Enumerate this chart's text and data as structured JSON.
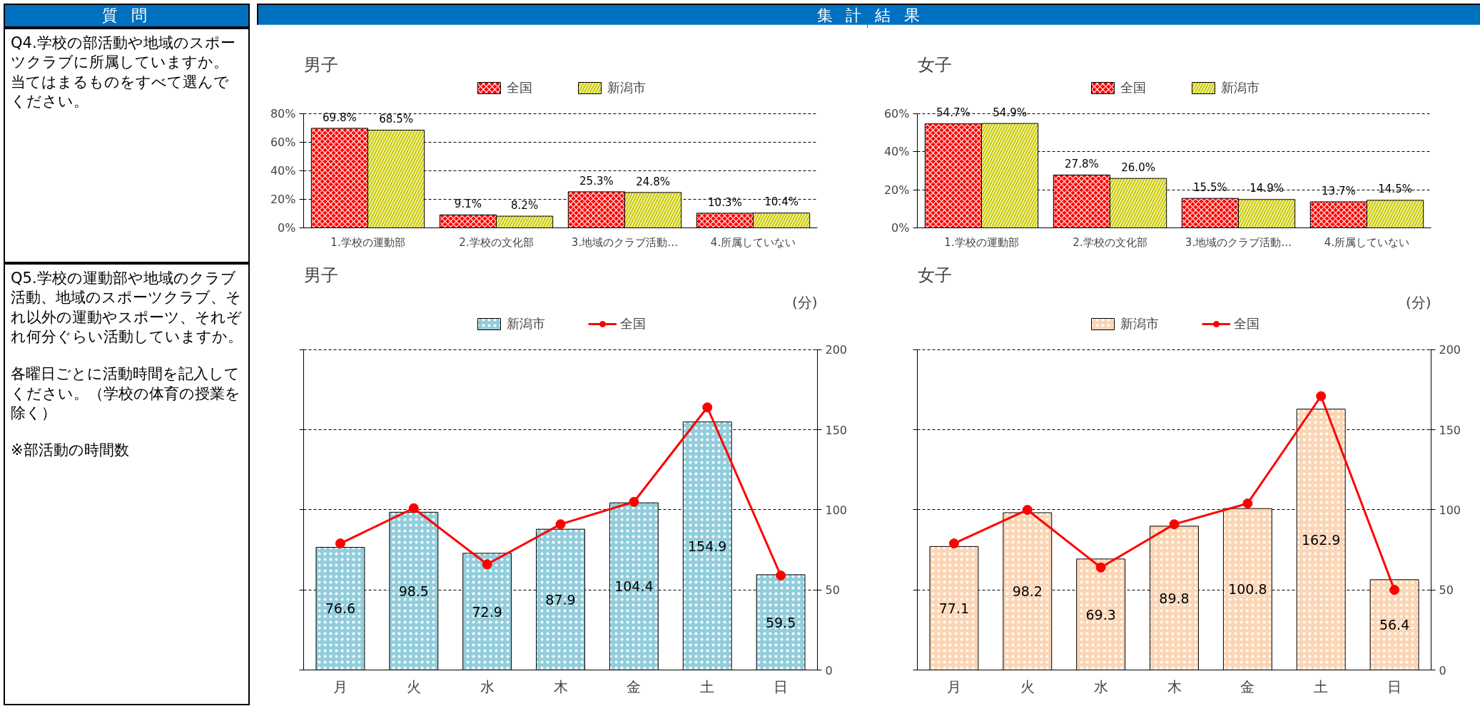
{
  "chart_data": [
    {
      "type": "other",
      "annotations": [
        "質 問",
        "集 計 結 果"
      ]
    },
    {
      "type": "other",
      "annotations": [
        "Q4.学校の部活動や地域のスポーツクラブに所属していますか。当てはまるものをすべて選んでください。"
      ]
    },
    {
      "type": "bar",
      "title": "男子",
      "categories": [
        "1.学校の運動部",
        "2.学校の文化部",
        "3.地域のクラブ活動…",
        "4.所属していない"
      ],
      "series": [
        {
          "name": "全国",
          "color": "#ff0000",
          "values": [
            69.8,
            9.1,
            25.3,
            10.3
          ],
          "value_labels": [
            "69.8%",
            "9.1%",
            "25.3%",
            "10.3%"
          ]
        },
        {
          "name": "新潟市",
          "color": "#cccc00",
          "values": [
            68.5,
            8.2,
            24.8,
            10.4
          ],
          "value_labels": [
            "68.5%",
            "8.2%",
            "24.8%",
            "10.4%"
          ]
        }
      ],
      "ylim": [
        0,
        80
      ],
      "yticks": [
        {
          "value": 0,
          "label": "0%"
        },
        {
          "value": 20,
          "label": "20%"
        },
        {
          "value": 40,
          "label": "40%"
        },
        {
          "value": 60,
          "label": "60%"
        },
        {
          "value": 80,
          "label": "80%"
        }
      ],
      "grid": "y",
      "legend": "top"
    },
    {
      "type": "bar",
      "title": "女子",
      "categories": [
        "1.学校の運動部",
        "2.学校の文化部",
        "3.地域のクラブ活動…",
        "4.所属していない"
      ],
      "series": [
        {
          "name": "全国",
          "color": "#ff0000",
          "values": [
            54.7,
            27.8,
            15.5,
            13.7
          ],
          "value_labels": [
            "54.7%",
            "27.8%",
            "15.5%",
            "13.7%"
          ]
        },
        {
          "name": "新潟市",
          "color": "#cccc00",
          "values": [
            54.9,
            26.0,
            14.9,
            14.5
          ],
          "value_labels": [
            "54.9%",
            "26.0%",
            "14.9%",
            "14.5%"
          ]
        }
      ],
      "ylim": [
        0,
        60
      ],
      "yticks": [
        {
          "value": 0,
          "label": "0%"
        },
        {
          "value": 20,
          "label": "20%"
        },
        {
          "value": 40,
          "label": "40%"
        },
        {
          "value": 60,
          "label": "60%"
        }
      ],
      "grid": "y",
      "legend": "top"
    },
    {
      "type": "other",
      "annotations": [
        "Q5.学校の運動部や地域のクラブ活動、地域のスポーツクラブ、それ以外の運動やスポーツ、それぞれ何分ぐらい活動していますか。",
        "各曜日ごとに活動時間を記入してください。（学校の体育の授業を除く）",
        "※部活動の時間数"
      ]
    },
    {
      "type": "bar",
      "title": "男子",
      "y2label": "(分)",
      "categories": [
        "月",
        "火",
        "水",
        "木",
        "金",
        "土",
        "日"
      ],
      "series": [
        {
          "name": "新潟市",
          "type": "bar",
          "axis": "y2",
          "color": "#92cddc",
          "values": [
            76.6,
            98.5,
            72.9,
            87.9,
            104.4,
            154.9,
            59.5
          ],
          "value_labels": [
            "76.6",
            "98.5",
            "72.9",
            "87.9",
            "104.4",
            "154.9",
            "59.5"
          ]
        },
        {
          "name": "全国",
          "type": "line",
          "axis": "y2",
          "color": "#ff0000",
          "marker": "circle",
          "values": [
            79,
            101,
            66,
            91,
            105,
            164,
            59
          ]
        }
      ],
      "y2lim": [
        0,
        200
      ],
      "y2ticks": [
        0,
        50,
        100,
        150,
        200
      ],
      "grid": "y",
      "legend": "top"
    },
    {
      "type": "bar",
      "title": "女子",
      "y2label": "(分)",
      "categories": [
        "月",
        "火",
        "水",
        "木",
        "金",
        "土",
        "日"
      ],
      "series": [
        {
          "name": "新潟市",
          "type": "bar",
          "axis": "y2",
          "color": "#fcd5b4",
          "values": [
            77.1,
            98.2,
            69.3,
            89.8,
            100.8,
            162.9,
            56.4
          ],
          "value_labels": [
            "77.1",
            "98.2",
            "69.3",
            "89.8",
            "100.8",
            "162.9",
            "56.4"
          ]
        },
        {
          "name": "全国",
          "type": "line",
          "axis": "y2",
          "color": "#ff0000",
          "marker": "circle",
          "values": [
            79,
            100,
            64,
            91,
            104,
            171,
            50
          ]
        }
      ],
      "y2lim": [
        0,
        200
      ],
      "y2ticks": [
        0,
        50,
        100,
        150,
        200
      ],
      "grid": "y",
      "legend": "top"
    }
  ]
}
